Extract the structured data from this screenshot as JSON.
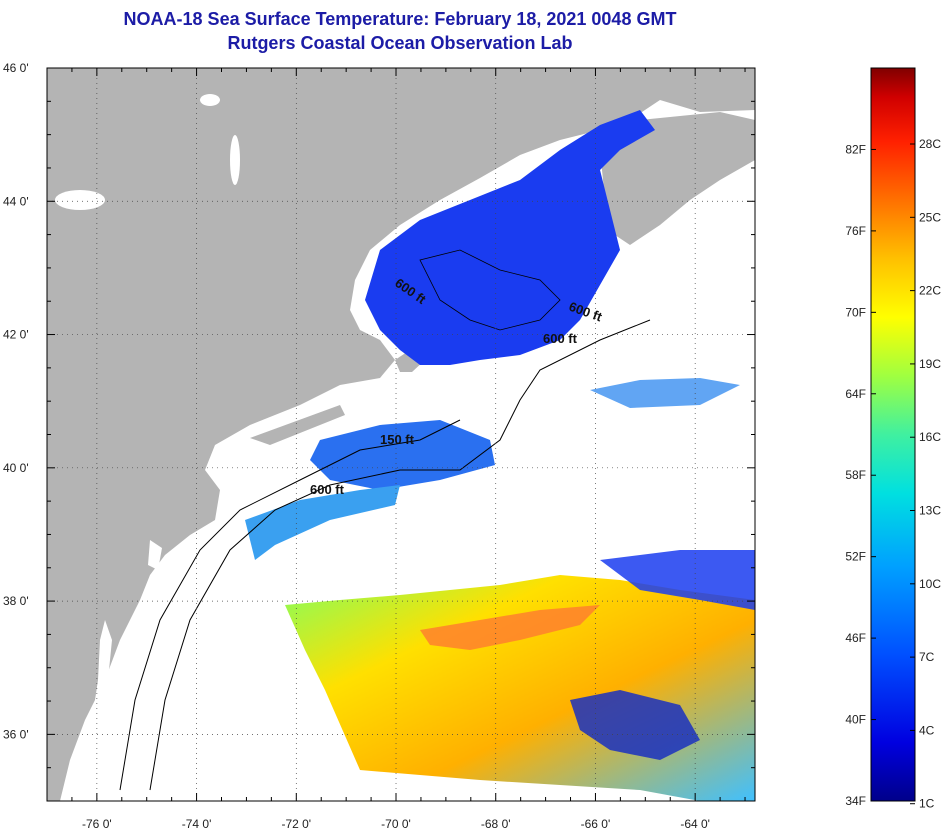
{
  "title": "NOAA-18 Sea Surface Temperature:  February 18, 2021 0048 GMT",
  "subtitle": "Rutgers Coastal Ocean Observation Lab",
  "latitude_labels": [
    "46 0'",
    "44 0'",
    "42 0'",
    "40 0'",
    "38 0'",
    "36 0'"
  ],
  "longitude_labels": [
    "-76 0'",
    "-74 0'",
    "-72 0'",
    "-70 0'",
    "-68 0'",
    "-66 0'",
    "-64 0'"
  ],
  "contour_labels": [
    "600 ft",
    "600 ft",
    "600 ft",
    "150 ft",
    "600 ft"
  ],
  "colorbar": {
    "fahrenheit": [
      "82F",
      "76F",
      "70F",
      "64F",
      "58F",
      "52F",
      "46F",
      "40F",
      "34F"
    ],
    "celsius": [
      "28C",
      "25C",
      "22C",
      "19C",
      "16C",
      "13C",
      "10C",
      "7C",
      "4C",
      "1C"
    ],
    "colors": [
      "#00008a",
      "#0000e0",
      "#0050ff",
      "#00a0ff",
      "#00e0e0",
      "#40f0a0",
      "#a0ff40",
      "#ffff00",
      "#ffc000",
      "#ff7000",
      "#ff2000",
      "#d00000",
      "#800000"
    ]
  },
  "colors": {
    "land": "#b4b4b4",
    "ocean_nodata": "#ffffff",
    "title": "#1c1ca6",
    "cold_water": "#1a3cf0",
    "warm_water": "#f0b020"
  }
}
